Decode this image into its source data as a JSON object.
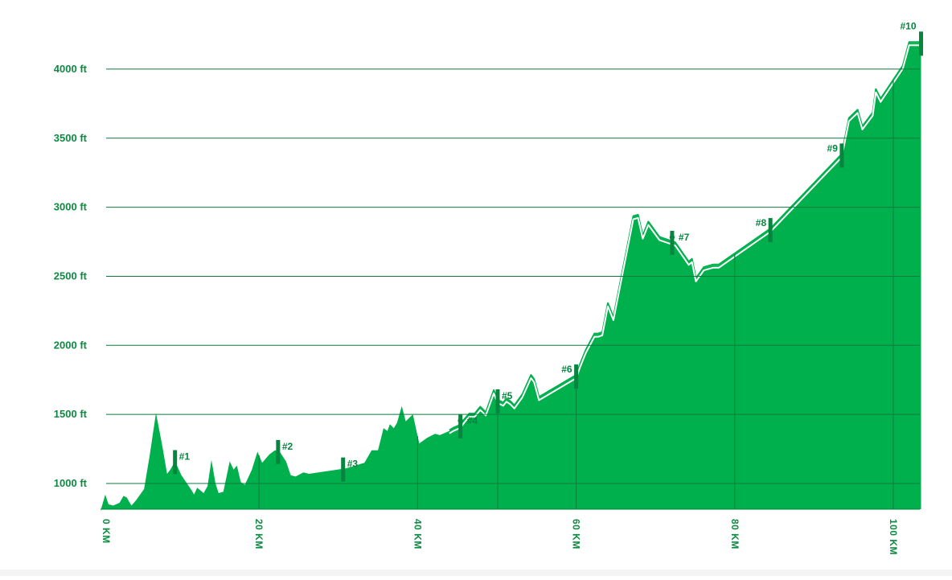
{
  "chart_data": {
    "type": "area",
    "title": "",
    "xlabel": "",
    "ylabel": "",
    "x_unit": "KM",
    "y_unit": "ft",
    "xlim": [
      0,
      103.5
    ],
    "ylim": [
      800,
      4300
    ],
    "y_ticks": [
      1000,
      1500,
      2000,
      2500,
      3000,
      3500,
      4000
    ],
    "y_tick_labels": [
      "1000 ft",
      "1500 ft",
      "2000 ft",
      "2500 ft",
      "3000 ft",
      "3500 ft",
      "4000 ft"
    ],
    "x_ticks": [
      0,
      20,
      40,
      60,
      80,
      100
    ],
    "x_tick_labels": [
      "0 KM",
      "20 KM",
      "40 KM",
      "60 KM",
      "80 KM",
      "100 KM"
    ],
    "grid": true,
    "legend": "none",
    "colors": {
      "fill": "#00b04c",
      "marker": "#06853f",
      "grid": "#0f7a3c",
      "label": "#0f8a42"
    },
    "elevation_profile": [
      [
        0,
        800
      ],
      [
        0.6,
        920
      ],
      [
        1,
        850
      ],
      [
        1.6,
        840
      ],
      [
        2.4,
        860
      ],
      [
        2.9,
        910
      ],
      [
        3.3,
        900
      ],
      [
        3.9,
        840
      ],
      [
        4.5,
        880
      ],
      [
        5.5,
        960
      ],
      [
        6.2,
        1200
      ],
      [
        7,
        1510
      ],
      [
        7.8,
        1270
      ],
      [
        8.4,
        1070
      ],
      [
        8.8,
        1100
      ],
      [
        9.4,
        1160
      ],
      [
        10.2,
        1060
      ],
      [
        11.5,
        950
      ],
      [
        11.8,
        920
      ],
      [
        12.2,
        970
      ],
      [
        13,
        930
      ],
      [
        13.5,
        980
      ],
      [
        14,
        1170
      ],
      [
        14.5,
        1000
      ],
      [
        14.9,
        930
      ],
      [
        15.5,
        940
      ],
      [
        16.3,
        1160
      ],
      [
        16.8,
        1100
      ],
      [
        17.2,
        1130
      ],
      [
        17.7,
        1010
      ],
      [
        18.2,
        990
      ],
      [
        19.1,
        1100
      ],
      [
        19.8,
        1230
      ],
      [
        20.4,
        1150
      ],
      [
        21.3,
        1210
      ],
      [
        22,
        1240
      ],
      [
        22.6,
        1230
      ],
      [
        23.4,
        1160
      ],
      [
        24,
        1060
      ],
      [
        24.6,
        1050
      ],
      [
        25.6,
        1080
      ],
      [
        26.3,
        1070
      ],
      [
        31,
        1110
      ],
      [
        33.3,
        1150
      ],
      [
        34.2,
        1240
      ],
      [
        35,
        1240
      ],
      [
        35.7,
        1400
      ],
      [
        36.2,
        1380
      ],
      [
        36.5,
        1430
      ],
      [
        37,
        1400
      ],
      [
        37.4,
        1440
      ],
      [
        38,
        1560
      ],
      [
        38.5,
        1450
      ],
      [
        39.4,
        1500
      ],
      [
        40.2,
        1290
      ],
      [
        41.2,
        1330
      ],
      [
        42.2,
        1360
      ],
      [
        42.8,
        1350
      ],
      [
        44,
        1380
      ],
      [
        44.6,
        1400
      ],
      [
        45.4,
        1420
      ],
      [
        45.9,
        1460
      ],
      [
        46.5,
        1500
      ],
      [
        47.2,
        1500
      ],
      [
        47.9,
        1550
      ],
      [
        48.6,
        1510
      ],
      [
        49.6,
        1670
      ],
      [
        50.1,
        1600
      ],
      [
        50.8,
        1580
      ],
      [
        51.2,
        1610
      ],
      [
        51.7,
        1590
      ],
      [
        52.2,
        1560
      ],
      [
        53.2,
        1640
      ],
      [
        54.3,
        1780
      ],
      [
        54.7,
        1750
      ],
      [
        55.3,
        1620
      ],
      [
        60,
        1780
      ],
      [
        60.5,
        1860
      ],
      [
        61.2,
        1960
      ],
      [
        62.3,
        2080
      ],
      [
        62.8,
        2080
      ],
      [
        63.3,
        2090
      ],
      [
        64,
        2300
      ],
      [
        64.7,
        2200
      ],
      [
        67.2,
        2930
      ],
      [
        67.8,
        2940
      ],
      [
        68.4,
        2790
      ],
      [
        69.1,
        2890
      ],
      [
        70.5,
        2780
      ],
      [
        72.5,
        2740
      ],
      [
        74.2,
        2600
      ],
      [
        74.6,
        2620
      ],
      [
        75.1,
        2480
      ],
      [
        76.1,
        2560
      ],
      [
        77.3,
        2580
      ],
      [
        78,
        2580
      ],
      [
        84.5,
        2840
      ],
      [
        93.5,
        3380
      ],
      [
        94.4,
        3640
      ],
      [
        95.5,
        3700
      ],
      [
        96.1,
        3580
      ],
      [
        97.4,
        3680
      ],
      [
        97.8,
        3850
      ],
      [
        98.4,
        3780
      ],
      [
        101.2,
        4020
      ],
      [
        102,
        4190
      ],
      [
        103.5,
        4190
      ]
    ],
    "checkpoints": [
      {
        "label": "#1",
        "x": 9.4
      },
      {
        "label": "#2",
        "x": 22.4
      },
      {
        "label": "#3",
        "x": 30.6
      },
      {
        "label": "#4",
        "x": 45.4,
        "dot": true
      },
      {
        "label": "#5",
        "x": 50.1
      },
      {
        "label": "#6",
        "x": 60
      },
      {
        "label": "#7",
        "x": 72.1,
        "dot": true
      },
      {
        "label": "#8",
        "x": 84.5
      },
      {
        "label": "#9",
        "x": 93.5
      },
      {
        "label": "#10",
        "x": 103.5
      }
    ]
  }
}
